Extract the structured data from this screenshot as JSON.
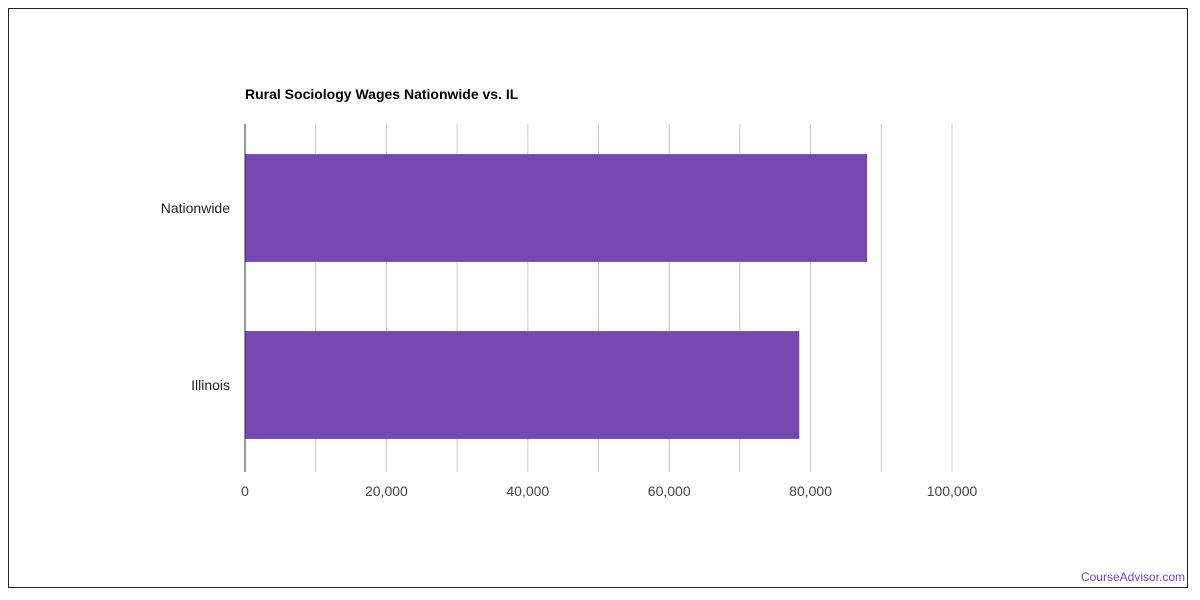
{
  "title": "Rural Sociology Wages Nationwide vs. IL",
  "brand": "CourseAdvisor.com",
  "colors": {
    "bar": "#7549ad",
    "grid": "#cccccc",
    "axis": "#333333",
    "brand": "#7549ad"
  },
  "chart_data": {
    "type": "bar",
    "orientation": "horizontal",
    "title": "Rural Sociology Wages Nationwide vs. IL",
    "xlabel": "",
    "ylabel": "",
    "categories": [
      "Nationwide",
      "Illinois"
    ],
    "values": [
      88000,
      78400
    ],
    "xlim": [
      0,
      100000
    ],
    "xticks": [
      0,
      20000,
      40000,
      60000,
      80000,
      100000
    ],
    "xtick_labels": [
      "0",
      "20,000",
      "40,000",
      "60,000",
      "80,000",
      "100,000"
    ],
    "grid": true,
    "legend": "none"
  }
}
